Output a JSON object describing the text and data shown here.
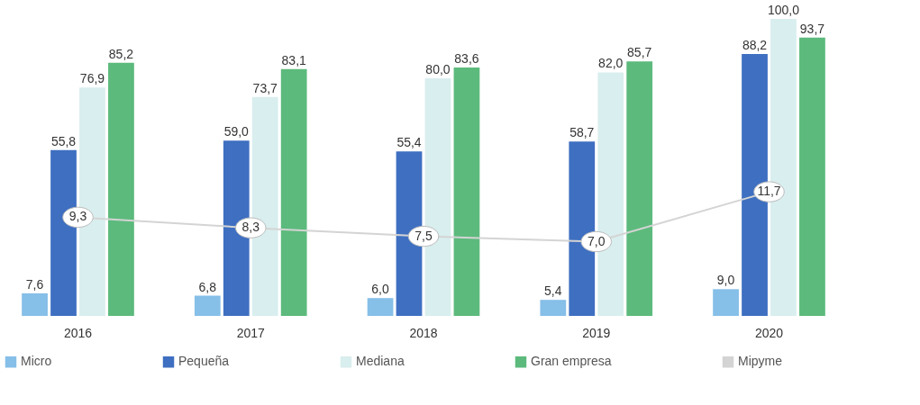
{
  "chart_data": {
    "type": "bar",
    "categories": [
      "2016",
      "2017",
      "2018",
      "2019",
      "2020"
    ],
    "series": [
      {
        "name": "Micro",
        "color": "#86bfe8",
        "values": [
          7.6,
          6.8,
          6.0,
          5.4,
          9.0
        ],
        "value_labels": [
          "7,6",
          "6,8",
          "6,0",
          "5,4",
          "9,0"
        ]
      },
      {
        "name": "Pequeña",
        "color": "#3e6fc1",
        "values": [
          55.8,
          59.0,
          55.4,
          58.7,
          88.2
        ],
        "value_labels": [
          "55,8",
          "59,0",
          "55,4",
          "58,7",
          "88,2"
        ]
      },
      {
        "name": "Mediana",
        "color": "#d9eeee",
        "values": [
          76.9,
          73.7,
          80.0,
          82.0,
          100.0
        ],
        "value_labels": [
          "76,9",
          "73,7",
          "80,0",
          "82,0",
          "100,0"
        ]
      },
      {
        "name": "Gran empresa",
        "color": "#5cba7c",
        "values": [
          85.2,
          83.1,
          83.6,
          85.7,
          93.7
        ],
        "value_labels": [
          "85,2",
          "83,1",
          "83,6",
          "85,7",
          "93,7"
        ]
      },
      {
        "name": "Mipyme",
        "type": "line",
        "axis": "y2",
        "marker": "circle",
        "color": "#d4d4d4",
        "values": [
          9.3,
          8.3,
          7.5,
          7.0,
          11.7
        ],
        "value_labels": [
          "9,3",
          "8,3",
          "7,5",
          "7,0",
          "11,7"
        ]
      }
    ],
    "ylim": [
      0,
      100
    ],
    "y2lim": [
      0,
      28
    ],
    "tick_labels": "x",
    "legend": "bottom"
  }
}
